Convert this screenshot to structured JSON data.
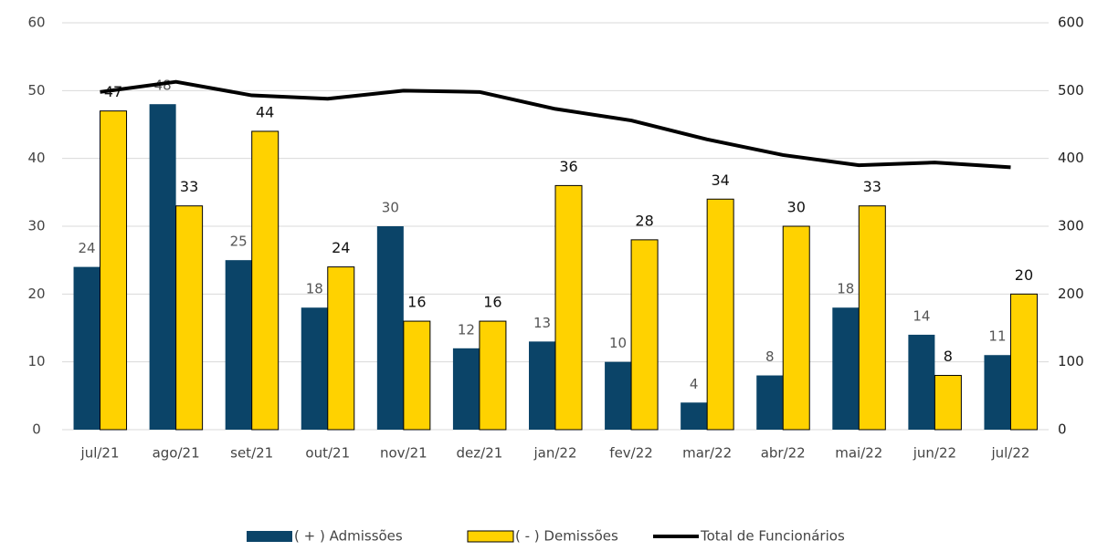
{
  "chart_data": {
    "type": "bar",
    "categories": [
      "jul/21",
      "ago/21",
      "set/21",
      "out/21",
      "nov/21",
      "dez/21",
      "jan/22",
      "fev/22",
      "mar/22",
      "abr/22",
      "mai/22",
      "jun/22",
      "jul/22"
    ],
    "series": [
      {
        "name": "( + ) Admissões",
        "color": "#0b4468",
        "values": [
          24,
          48,
          25,
          18,
          30,
          12,
          13,
          10,
          4,
          8,
          18,
          14,
          11
        ]
      },
      {
        "name": "( - ) Demissões",
        "color": "#ffd200",
        "values": [
          47,
          33,
          44,
          24,
          16,
          16,
          36,
          28,
          34,
          30,
          33,
          8,
          20
        ]
      },
      {
        "name": "Total de Funcionários",
        "color": "#000000",
        "axis": "y2",
        "values": [
          498,
          513,
          493,
          488,
          500,
          498,
          473,
          456,
          428,
          405,
          390,
          394,
          387
        ]
      }
    ],
    "ylim": [
      0,
      60
    ],
    "yticks": [
      0,
      10,
      20,
      30,
      40,
      50,
      60
    ],
    "y2lim": [
      0,
      600
    ],
    "y2ticks": [
      0,
      100,
      200,
      300,
      400,
      500,
      600
    ],
    "grid": true,
    "legend": "bottom"
  }
}
